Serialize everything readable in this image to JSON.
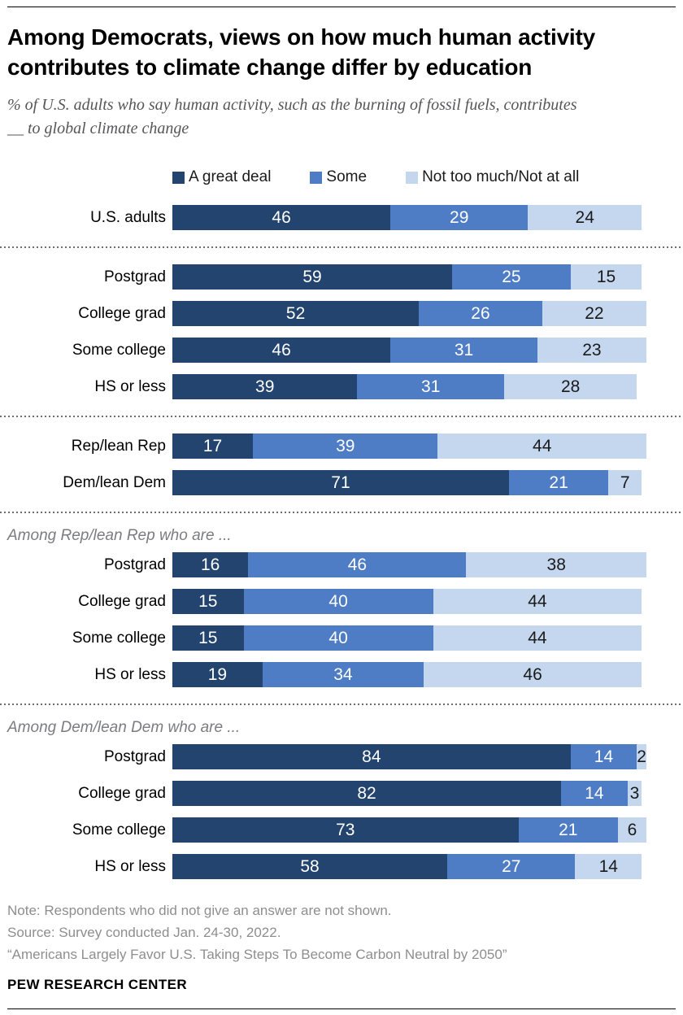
{
  "header": {
    "title": "Among Democrats, views on how much human activity contributes to climate change differ by education",
    "subtitle": "% of U.S. adults who say human activity, such as the burning of fossil fuels, contributes __ to global climate change"
  },
  "legend": [
    {
      "label": "A great deal",
      "color": "#23446e"
    },
    {
      "label": "Some",
      "color": "#4e7dc6"
    },
    {
      "label": "Not too much/Not at all",
      "color": "#c4d7ef"
    }
  ],
  "chart_data": {
    "type": "bar",
    "orientation": "horizontal",
    "stacked": true,
    "x_max": 100,
    "unit": "percent",
    "series_labels": [
      "A great deal",
      "Some",
      "Not too much/Not at all"
    ],
    "series_colors": [
      "#23446e",
      "#4e7dc6",
      "#c4d7ef"
    ],
    "groups": [
      {
        "label": "",
        "rows": [
          {
            "label": "U.S. adults",
            "values": [
              46,
              29,
              24
            ]
          }
        ]
      },
      {
        "label": "",
        "rows": [
          {
            "label": "Postgrad",
            "values": [
              59,
              25,
              15
            ]
          },
          {
            "label": "College grad",
            "values": [
              52,
              26,
              22
            ]
          },
          {
            "label": "Some college",
            "values": [
              46,
              31,
              23
            ]
          },
          {
            "label": "HS or less",
            "values": [
              39,
              31,
              28
            ]
          }
        ]
      },
      {
        "label": "",
        "rows": [
          {
            "label": "Rep/lean Rep",
            "values": [
              17,
              39,
              44
            ]
          },
          {
            "label": "Dem/lean Dem",
            "values": [
              71,
              21,
              7
            ]
          }
        ]
      },
      {
        "label": "Among Rep/lean Rep who are ...",
        "rows": [
          {
            "label": "Postgrad",
            "values": [
              16,
              46,
              38
            ]
          },
          {
            "label": "College grad",
            "values": [
              15,
              40,
              44
            ]
          },
          {
            "label": "Some college",
            "values": [
              15,
              40,
              44
            ]
          },
          {
            "label": "HS or less",
            "values": [
              19,
              34,
              46
            ]
          }
        ]
      },
      {
        "label": "Among Dem/lean Dem who are ...",
        "rows": [
          {
            "label": "Postgrad",
            "values": [
              84,
              14,
              2
            ]
          },
          {
            "label": "College grad",
            "values": [
              82,
              14,
              3
            ]
          },
          {
            "label": "Some college",
            "values": [
              73,
              21,
              6
            ]
          },
          {
            "label": "HS or less",
            "values": [
              58,
              27,
              14
            ]
          }
        ]
      }
    ]
  },
  "footer": {
    "notes": [
      "Note: Respondents who did not give an answer are not shown.",
      "Source: Survey conducted Jan. 24-30, 2022.",
      "“Americans Largely Favor U.S. Taking Steps To Become Carbon Neutral by 2050”"
    ],
    "brand": "PEW RESEARCH CENTER"
  }
}
